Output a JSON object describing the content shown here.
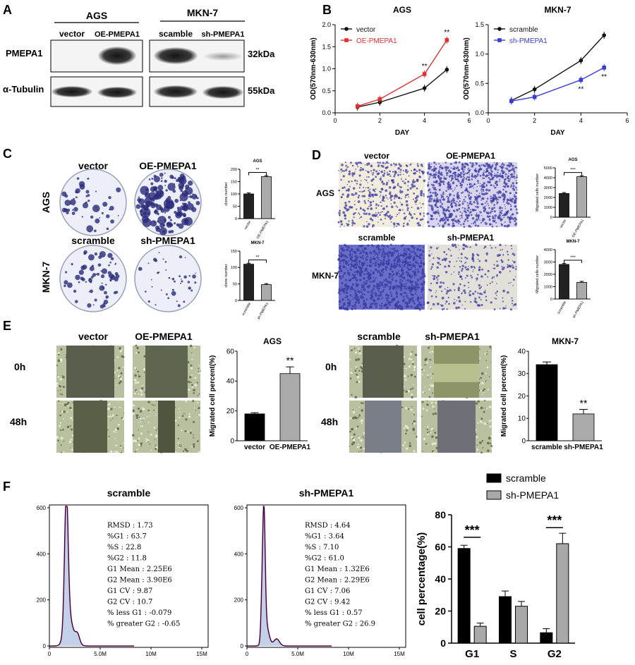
{
  "panels": {
    "A": "A",
    "B": "B",
    "C": "C",
    "D": "D",
    "E": "E",
    "F": "F"
  },
  "panelA": {
    "groups": [
      "AGS",
      "MKN-7"
    ],
    "lanes": [
      "vector",
      "OE-PMEPA1",
      "scamble",
      "sh-PMEPA1"
    ],
    "rows": [
      "PMEPA1",
      "α-Tubulin"
    ],
    "sizes": [
      "32kDa",
      "55kDa"
    ]
  },
  "panelC": {
    "cols": [
      "vector",
      "OE-PMEPA1"
    ],
    "cols2": [
      "scramble",
      "sh-PMEPA1"
    ],
    "rows": [
      "AGS",
      "MKN-7"
    ]
  },
  "panelD": {
    "cols": [
      "vector",
      "OE-PMEPA1"
    ],
    "cols2": [
      "scramble",
      "sh-PMEPA1"
    ],
    "rows": [
      "AGS",
      "MKN-7"
    ]
  },
  "panelE": {
    "cols_left": [
      "vector",
      "OE-PMEPA1"
    ],
    "cols_right": [
      "scramble",
      "sh-PMEPA1"
    ],
    "times": [
      "0h",
      "48h"
    ]
  },
  "panelF": {
    "titles": [
      "scramble",
      "sh-PMEPA1"
    ],
    "hist_yticks": [
      "0",
      "200",
      "400",
      "600"
    ],
    "hist_xticks": [
      "0",
      "5.0M",
      "10M",
      "15M"
    ],
    "stats1": [
      "RMSD : 1.73",
      "%G1 : 63.7",
      "%S : 22.8",
      "%G2 : 11.8",
      "G1 Mean : 2.25E6",
      "G2 Mean : 3.90E6",
      "G1 CV : 9.87",
      "G2 CV : 10.7",
      "% less G1 : -0.079",
      "% greater G2 : -0.65"
    ],
    "stats2": [
      "RMSD : 4.64",
      "%G1 : 3.64",
      "%S : 7.10",
      "%G2 : 61.0",
      "G1 Mean : 1.32E6",
      "G2 Mean : 2.29E6",
      "G1 CV : 7.06",
      "G2 CV : 9.42",
      "% less G1 : 0.57",
      "% greater G2 : 26.9"
    ]
  },
  "chart_data": [
    {
      "id": "B1",
      "type": "line",
      "title": "AGS",
      "xlabel": "DAY",
      "ylabel": "OD(570nm-630nm)",
      "x": [
        1,
        2,
        4,
        5
      ],
      "xlim": [
        0,
        6
      ],
      "ylim": [
        0,
        2.0
      ],
      "xticks": [
        0,
        2,
        4,
        6
      ],
      "yticks": [
        0.0,
        0.5,
        1.0,
        1.5,
        2.0
      ],
      "legend_position": "top-left",
      "series": [
        {
          "name": "vector",
          "color": "#111111",
          "values": [
            0.13,
            0.24,
            0.56,
            0.98
          ]
        },
        {
          "name": "OE-PMEPA1",
          "color": "#e03030",
          "values": [
            0.15,
            0.31,
            0.88,
            1.65
          ]
        }
      ],
      "annotations": [
        {
          "x": 4,
          "text": "**"
        },
        {
          "x": 5,
          "text": "**"
        }
      ]
    },
    {
      "id": "B2",
      "type": "line",
      "title": "MKN-7",
      "xlabel": "DAY",
      "ylabel": "OD(570nm-630nm)",
      "x": [
        1,
        2,
        4,
        5
      ],
      "xlim": [
        0,
        6
      ],
      "ylim": [
        0,
        1.5
      ],
      "xticks": [
        0,
        2,
        4,
        6
      ],
      "yticks": [
        0.0,
        0.5,
        1.0,
        1.5
      ],
      "legend_position": "top-left",
      "series": [
        {
          "name": "scramble",
          "color": "#111111",
          "values": [
            0.21,
            0.4,
            0.89,
            1.32
          ]
        },
        {
          "name": "sh-PMEPA1",
          "color": "#3a3ad6",
          "values": [
            0.2,
            0.27,
            0.56,
            0.77
          ]
        }
      ],
      "annotations": [
        {
          "x": 4,
          "text": "**"
        },
        {
          "x": 5,
          "text": "**"
        }
      ]
    },
    {
      "id": "C1",
      "type": "bar",
      "title": "AGS",
      "ylabel": "clone number",
      "categories": [
        "vector",
        "OE-PMEPA1"
      ],
      "values": [
        100,
        170
      ],
      "ylim": [
        0,
        200
      ],
      "yticks": [
        0,
        50,
        100,
        150,
        200
      ],
      "sig": "**"
    },
    {
      "id": "C2",
      "type": "bar",
      "title": "MKN-7",
      "ylabel": "clone number",
      "categories": [
        "scramble",
        "sh-PMEPA1"
      ],
      "values": [
        110,
        48
      ],
      "ylim": [
        0,
        150
      ],
      "yticks": [
        0,
        50,
        100,
        150
      ],
      "sig": "**"
    },
    {
      "id": "D1",
      "type": "bar",
      "title": "AGS",
      "ylabel": "Migrated cells number",
      "categories": [
        "vector",
        "OE-PMEPA1"
      ],
      "values": [
        2400,
        4100
      ],
      "ylim": [
        0,
        5000
      ],
      "yticks": [
        0,
        1000,
        2000,
        3000,
        4000,
        5000
      ],
      "sig": "***"
    },
    {
      "id": "D2",
      "type": "bar",
      "title": "MKN-7",
      "ylabel": "Migrated cells number",
      "categories": [
        "scramble",
        "sh-PMEPA1"
      ],
      "values": [
        2800,
        1350
      ],
      "ylim": [
        0,
        4000
      ],
      "yticks": [
        0,
        1000,
        2000,
        3000,
        4000
      ],
      "sig": "***"
    },
    {
      "id": "E1",
      "type": "bar",
      "title": "AGS",
      "ylabel": "Migrated cell percent(%)",
      "categories": [
        "vector",
        "OE-PMEPA1"
      ],
      "values": [
        18,
        45
      ],
      "errors": [
        0.8,
        4.5
      ],
      "ylim": [
        0,
        60
      ],
      "yticks": [
        0,
        20,
        40,
        60
      ],
      "sig": "**"
    },
    {
      "id": "E2",
      "type": "bar",
      "title": "MKN-7",
      "ylabel": "Migrated cell percent(%)",
      "categories": [
        "scramble",
        "sh-PMEPA1"
      ],
      "values": [
        34,
        12
      ],
      "errors": [
        1.2,
        2.0
      ],
      "ylim": [
        0,
        40
      ],
      "yticks": [
        0,
        10,
        20,
        30,
        40
      ],
      "sig": "**"
    },
    {
      "id": "F3",
      "type": "bar",
      "ylabel": "cell percentage(%)",
      "categories": [
        "G1",
        "S",
        "G2"
      ],
      "series": [
        {
          "name": "scramble",
          "color": "#000000",
          "values": [
            59,
            29,
            6.5
          ],
          "errors": [
            2,
            3.5,
            2.5
          ]
        },
        {
          "name": "sh-PMEPA1",
          "color": "#a8a8a8",
          "values": [
            10.5,
            23,
            62
          ],
          "errors": [
            2,
            3,
            6.5
          ]
        }
      ],
      "ylim": [
        0,
        80
      ],
      "yticks": [
        0,
        20,
        40,
        60,
        80
      ],
      "legend_position": "top",
      "annotations": [
        {
          "category": "G1",
          "text": "***"
        },
        {
          "category": "G2",
          "text": "***"
        }
      ]
    }
  ]
}
